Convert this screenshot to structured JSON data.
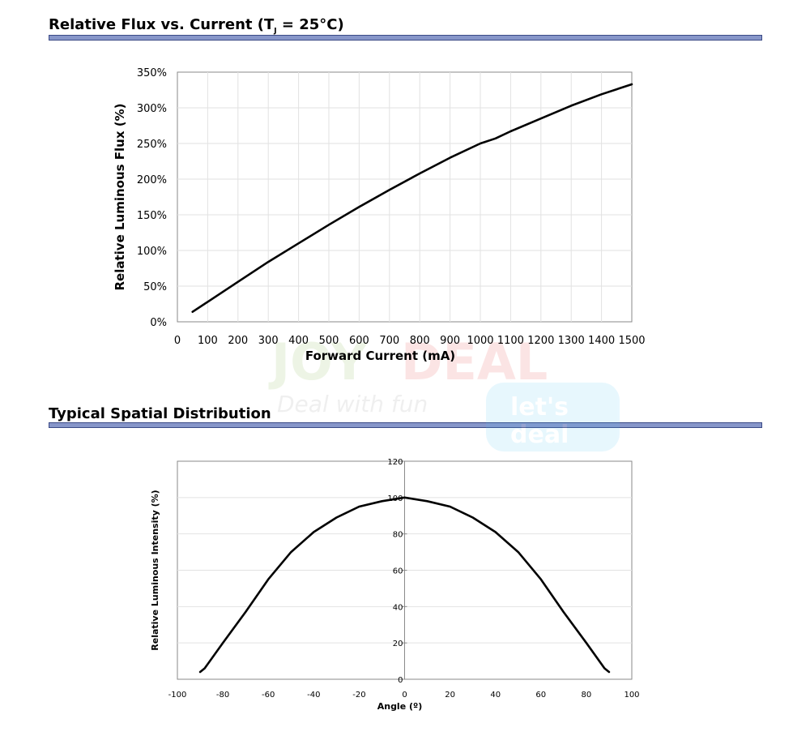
{
  "sections": {
    "flux": {
      "title_main": "Relative Flux vs. Current (T",
      "title_sub": "J",
      "title_tail": " = 25°C)"
    },
    "spatial": {
      "title": "Typical Spatial Distribution"
    }
  },
  "watermark": {
    "brand_left": "JOY",
    "brand_right": "DEAL",
    "tagline": "Deal with fun",
    "badge_top": "let's",
    "badge_bottom": "deal"
  },
  "chart_data": [
    {
      "type": "line",
      "title": "Relative Flux vs. Current (TJ = 25°C)",
      "xlabel": "Forward Current (mA)",
      "ylabel": "Relative Luminous Flux (%)",
      "xlim": [
        0,
        1500
      ],
      "ylim": [
        0,
        350
      ],
      "xticks": [
        "0",
        "100",
        "200",
        "300",
        "400",
        "500",
        "600",
        "700",
        "800",
        "900",
        "1000",
        "1100",
        "1200",
        "1300",
        "1400",
        "1500"
      ],
      "yticks": [
        "0%",
        "50%",
        "100%",
        "150%",
        "200%",
        "250%",
        "300%",
        "350%"
      ],
      "grid": true,
      "color": "#000000",
      "x": [
        50,
        100,
        200,
        300,
        400,
        500,
        600,
        700,
        800,
        900,
        1000,
        1050,
        1100,
        1200,
        1300,
        1400,
        1500
      ],
      "y": [
        14,
        28,
        56,
        84,
        110,
        136,
        161,
        185,
        208,
        230,
        250,
        257,
        267,
        285,
        303,
        319,
        333
      ]
    },
    {
      "type": "line",
      "title": "Typical Spatial Distribution",
      "xlabel": "Angle (º)",
      "ylabel": "Relative Luminous Intensity (%)",
      "xlim": [
        -100,
        100
      ],
      "ylim": [
        0,
        120
      ],
      "xticks": [
        "-100",
        "-80",
        "-60",
        "-40",
        "-20",
        "0",
        "20",
        "40",
        "60",
        "80",
        "100"
      ],
      "yticks": [
        "0",
        "20",
        "40",
        "60",
        "80",
        "100",
        "120"
      ],
      "grid": true,
      "color": "#000000",
      "x": [
        -90,
        -88,
        -80,
        -70,
        -60,
        -50,
        -40,
        -30,
        -20,
        -10,
        0,
        10,
        20,
        30,
        40,
        50,
        60,
        70,
        80,
        88,
        90
      ],
      "y": [
        4,
        6,
        20,
        37,
        55,
        70,
        81,
        89,
        95,
        98,
        100,
        98,
        95,
        89,
        81,
        70,
        55,
        37,
        20,
        6,
        4
      ]
    }
  ]
}
